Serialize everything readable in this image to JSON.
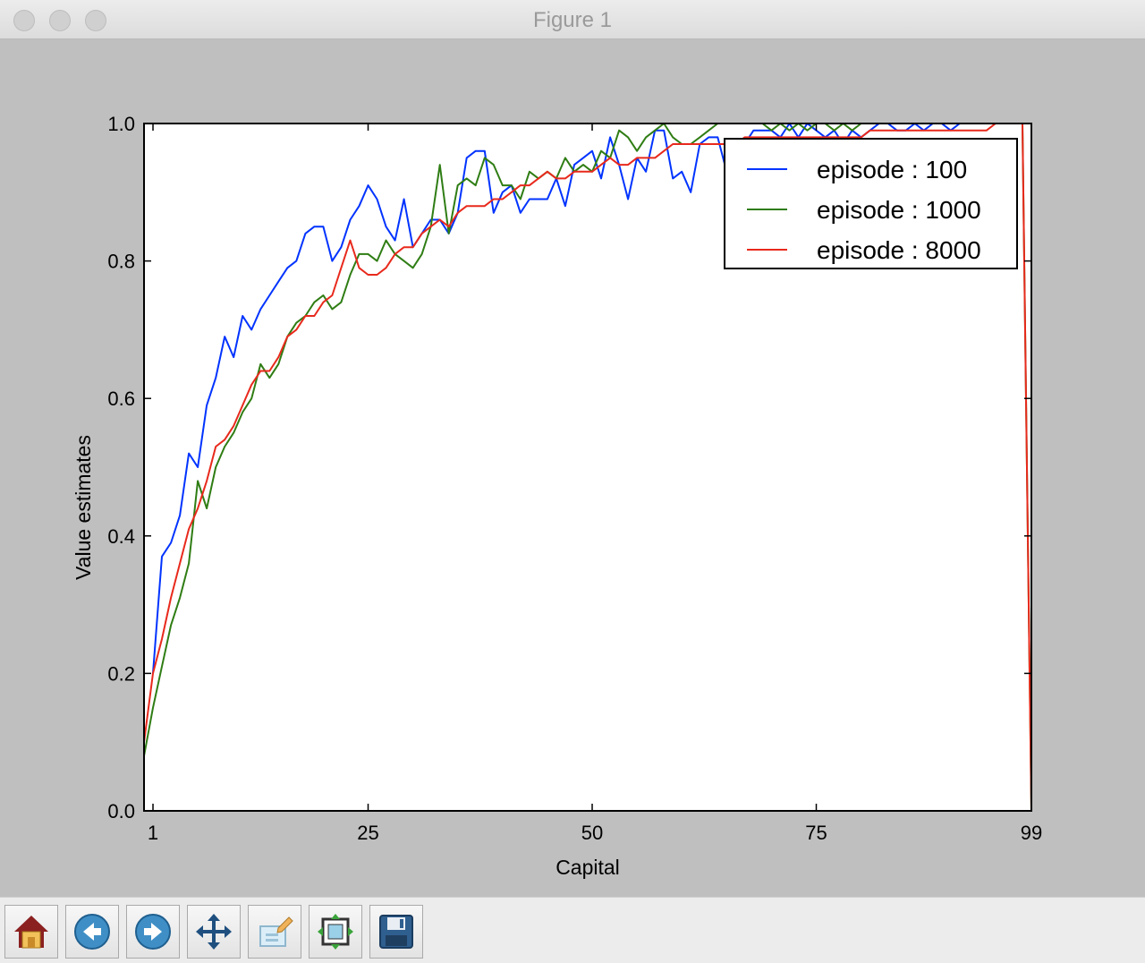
{
  "window": {
    "title": "Figure 1"
  },
  "toolbar": {
    "buttons": [
      {
        "name": "home-button",
        "icon": "home-icon"
      },
      {
        "name": "back-button",
        "icon": "back-arrow-icon"
      },
      {
        "name": "forward-button",
        "icon": "forward-arrow-icon"
      },
      {
        "name": "pan-button",
        "icon": "pan-arrows-icon"
      },
      {
        "name": "zoom-button",
        "icon": "zoom-rect-icon"
      },
      {
        "name": "subplots-button",
        "icon": "subplots-config-icon"
      },
      {
        "name": "save-button",
        "icon": "floppy-disk-icon"
      }
    ]
  },
  "chart_data": {
    "type": "line",
    "title": "",
    "xlabel": "Capital",
    "ylabel": "Value estimates",
    "xlim": [
      0,
      99
    ],
    "ylim": [
      0,
      1.0
    ],
    "xticks": [
      1,
      25,
      50,
      75,
      99
    ],
    "yticks": [
      0.0,
      0.2,
      0.4,
      0.6,
      0.8,
      1.0
    ],
    "ytick_labels": [
      "0.0",
      "0.2",
      "0.4",
      "0.6",
      "0.8",
      "1.0"
    ],
    "legend_position": "upper-right",
    "grid": false,
    "series": [
      {
        "name": "episode : 100",
        "color": "#0033ff",
        "x": [
          1,
          2,
          3,
          4,
          5,
          6,
          7,
          8,
          9,
          10,
          11,
          12,
          13,
          14,
          15,
          16,
          17,
          18,
          19,
          20,
          21,
          22,
          23,
          24,
          25,
          26,
          27,
          28,
          29,
          30,
          31,
          32,
          33,
          34,
          35,
          36,
          37,
          38,
          39,
          40,
          41,
          42,
          43,
          44,
          45,
          46,
          47,
          48,
          49,
          50,
          51,
          52,
          53,
          54,
          55,
          56,
          57,
          58,
          59,
          60,
          61,
          62,
          63,
          64,
          65,
          66,
          67,
          68,
          69,
          70,
          71,
          72,
          73,
          74,
          75,
          76,
          77,
          78,
          79,
          80,
          81,
          82,
          83,
          84,
          85,
          86,
          87,
          88,
          89,
          90,
          91,
          92,
          93,
          94,
          95,
          96,
          97,
          98,
          99
        ],
        "y": [
          0.2,
          0.37,
          0.39,
          0.43,
          0.52,
          0.5,
          0.59,
          0.63,
          0.69,
          0.66,
          0.72,
          0.7,
          0.73,
          0.75,
          0.77,
          0.79,
          0.8,
          0.84,
          0.85,
          0.85,
          0.8,
          0.82,
          0.86,
          0.88,
          0.91,
          0.89,
          0.85,
          0.83,
          0.89,
          0.82,
          0.84,
          0.86,
          0.86,
          0.84,
          0.87,
          0.95,
          0.96,
          0.96,
          0.87,
          0.9,
          0.91,
          0.87,
          0.89,
          0.89,
          0.89,
          0.92,
          0.88,
          0.94,
          0.95,
          0.96,
          0.92,
          0.98,
          0.94,
          0.89,
          0.95,
          0.93,
          0.99,
          0.99,
          0.92,
          0.93,
          0.9,
          0.97,
          0.98,
          0.98,
          0.93,
          0.91,
          0.97,
          0.99,
          0.99,
          0.99,
          0.98,
          1.0,
          0.98,
          1.0,
          0.99,
          0.98,
          0.99,
          0.97,
          0.99,
          0.98,
          0.99,
          1.0,
          1.0,
          0.99,
          0.99,
          1.0,
          0.99,
          1.0,
          1.0,
          0.99,
          1.0,
          1.0,
          1.0,
          1.0,
          1.0,
          1.0,
          1.0,
          1.0,
          1.0
        ]
      },
      {
        "name": "episode : 1000",
        "color": "#2f7d14",
        "x": [
          0,
          1,
          2,
          3,
          4,
          5,
          6,
          7,
          8,
          9,
          10,
          11,
          12,
          13,
          14,
          15,
          16,
          17,
          18,
          19,
          20,
          21,
          22,
          23,
          24,
          25,
          26,
          27,
          28,
          29,
          30,
          31,
          32,
          33,
          34,
          35,
          36,
          37,
          38,
          39,
          40,
          41,
          42,
          43,
          44,
          45,
          46,
          47,
          48,
          49,
          50,
          51,
          52,
          53,
          54,
          55,
          56,
          57,
          58,
          59,
          60,
          61,
          62,
          63,
          64,
          65,
          66,
          67,
          68,
          69,
          70,
          71,
          72,
          73,
          74,
          75,
          76,
          77,
          78,
          79,
          80,
          81,
          82,
          83,
          84,
          85,
          86,
          87,
          88,
          89,
          90,
          91,
          92,
          93,
          94,
          95,
          96,
          97,
          98,
          99
        ],
        "y": [
          0.08,
          0.15,
          0.21,
          0.27,
          0.31,
          0.36,
          0.48,
          0.44,
          0.5,
          0.53,
          0.55,
          0.58,
          0.6,
          0.65,
          0.63,
          0.65,
          0.69,
          0.71,
          0.72,
          0.74,
          0.75,
          0.73,
          0.74,
          0.78,
          0.81,
          0.81,
          0.8,
          0.83,
          0.81,
          0.8,
          0.79,
          0.81,
          0.85,
          0.94,
          0.84,
          0.91,
          0.92,
          0.91,
          0.95,
          0.94,
          0.91,
          0.91,
          0.89,
          0.93,
          0.92,
          0.93,
          0.92,
          0.95,
          0.93,
          0.94,
          0.93,
          0.96,
          0.95,
          0.99,
          0.98,
          0.96,
          0.98,
          0.99,
          1.0,
          0.98,
          0.97,
          0.97,
          0.98,
          0.99,
          1.0,
          1.0,
          1.0,
          1.0,
          1.0,
          1.0,
          0.99,
          1.0,
          0.99,
          1.0,
          0.99,
          1.0,
          1.0,
          0.99,
          1.0,
          0.99,
          1.0,
          1.0,
          1.0,
          1.0,
          1.0,
          1.0,
          1.0,
          1.0,
          1.0,
          1.0,
          1.0,
          1.0,
          1.0,
          1.0,
          1.0,
          1.0,
          1.0,
          1.0,
          1.0,
          0.0
        ]
      },
      {
        "name": "episode : 8000",
        "color": "#e8291c",
        "x": [
          0,
          1,
          2,
          3,
          4,
          5,
          6,
          7,
          8,
          9,
          10,
          11,
          12,
          13,
          14,
          15,
          16,
          17,
          18,
          19,
          20,
          21,
          22,
          23,
          24,
          25,
          26,
          27,
          28,
          29,
          30,
          31,
          32,
          33,
          34,
          35,
          36,
          37,
          38,
          39,
          40,
          41,
          42,
          43,
          44,
          45,
          46,
          47,
          48,
          49,
          50,
          51,
          52,
          53,
          54,
          55,
          56,
          57,
          58,
          59,
          60,
          61,
          62,
          63,
          64,
          65,
          66,
          67,
          68,
          69,
          70,
          71,
          72,
          73,
          74,
          75,
          76,
          77,
          78,
          79,
          80,
          81,
          82,
          83,
          84,
          85,
          86,
          87,
          88,
          89,
          90,
          91,
          92,
          93,
          94,
          95,
          96,
          97,
          98,
          99
        ],
        "y": [
          0.1,
          0.2,
          0.25,
          0.31,
          0.36,
          0.41,
          0.44,
          0.48,
          0.53,
          0.54,
          0.56,
          0.59,
          0.62,
          0.64,
          0.64,
          0.66,
          0.69,
          0.7,
          0.72,
          0.72,
          0.74,
          0.75,
          0.79,
          0.83,
          0.79,
          0.78,
          0.78,
          0.79,
          0.81,
          0.82,
          0.82,
          0.84,
          0.85,
          0.86,
          0.85,
          0.87,
          0.88,
          0.88,
          0.88,
          0.89,
          0.89,
          0.9,
          0.91,
          0.91,
          0.92,
          0.93,
          0.92,
          0.92,
          0.93,
          0.93,
          0.93,
          0.94,
          0.95,
          0.94,
          0.94,
          0.95,
          0.95,
          0.95,
          0.96,
          0.97,
          0.97,
          0.97,
          0.97,
          0.97,
          0.97,
          0.97,
          0.97,
          0.98,
          0.98,
          0.98,
          0.98,
          0.98,
          0.98,
          0.98,
          0.98,
          0.98,
          0.98,
          0.98,
          0.98,
          0.98,
          0.98,
          0.99,
          0.99,
          0.99,
          0.99,
          0.99,
          0.99,
          0.99,
          0.99,
          0.99,
          0.99,
          0.99,
          0.99,
          0.99,
          0.99,
          1.0,
          1.0,
          1.0,
          1.0,
          0.0
        ]
      }
    ]
  }
}
